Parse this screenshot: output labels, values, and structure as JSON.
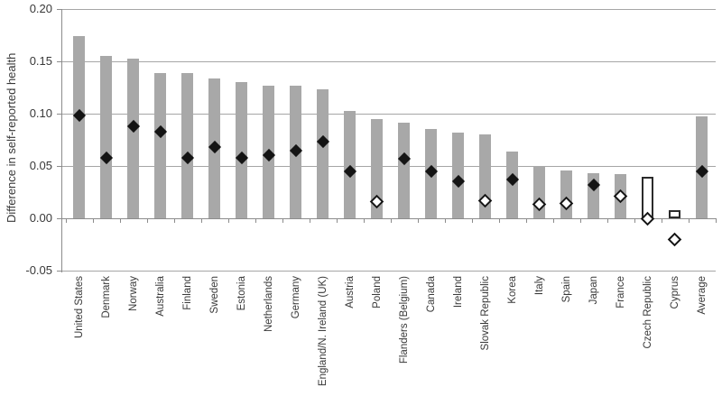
{
  "chart_data": {
    "type": "bar",
    "title": "",
    "xlabel": "",
    "ylabel": "Difference in self-reported health",
    "ylim": [
      -0.05,
      0.2
    ],
    "yticks": [
      0.2,
      0.15,
      0.1,
      0.05,
      0.0,
      -0.05
    ],
    "ytick_labels": [
      "0.20",
      "0.15",
      "0.10",
      "0.05",
      "0.00",
      "-0.05"
    ],
    "grid": true,
    "legend": "none",
    "marker_styles_meaning": {
      "filled": "black-filled diamond",
      "open": "white open diamond"
    },
    "bar_styles_meaning": {
      "solid": "gray filled bar",
      "outlined": "white bar with black outline"
    },
    "points": [
      {
        "label": "United States",
        "bar": 0.174,
        "bar_style": "solid",
        "marker": 0.098,
        "marker_style": "filled"
      },
      {
        "label": "Denmark",
        "bar": 0.155,
        "bar_style": "solid",
        "marker": 0.058,
        "marker_style": "filled"
      },
      {
        "label": "Norway",
        "bar": 0.153,
        "bar_style": "solid",
        "marker": 0.088,
        "marker_style": "filled"
      },
      {
        "label": "Australia",
        "bar": 0.139,
        "bar_style": "solid",
        "marker": 0.083,
        "marker_style": "filled"
      },
      {
        "label": "Finland",
        "bar": 0.139,
        "bar_style": "solid",
        "marker": 0.058,
        "marker_style": "filled"
      },
      {
        "label": "Sweden",
        "bar": 0.134,
        "bar_style": "solid",
        "marker": 0.068,
        "marker_style": "filled"
      },
      {
        "label": "Estonia",
        "bar": 0.13,
        "bar_style": "solid",
        "marker": 0.058,
        "marker_style": "filled"
      },
      {
        "label": "Netherlands",
        "bar": 0.127,
        "bar_style": "solid",
        "marker": 0.06,
        "marker_style": "filled"
      },
      {
        "label": "Germany",
        "bar": 0.127,
        "bar_style": "solid",
        "marker": 0.065,
        "marker_style": "filled"
      },
      {
        "label": "England/N. Ireland (UK)",
        "bar": 0.123,
        "bar_style": "solid",
        "marker": 0.073,
        "marker_style": "filled"
      },
      {
        "label": "Austria",
        "bar": 0.103,
        "bar_style": "solid",
        "marker": 0.045,
        "marker_style": "filled"
      },
      {
        "label": "Poland",
        "bar": 0.095,
        "bar_style": "solid",
        "marker": 0.016,
        "marker_style": "open"
      },
      {
        "label": "Flanders (Belgium)",
        "bar": 0.091,
        "bar_style": "solid",
        "marker": 0.057,
        "marker_style": "filled"
      },
      {
        "label": "Canada",
        "bar": 0.085,
        "bar_style": "solid",
        "marker": 0.045,
        "marker_style": "filled"
      },
      {
        "label": "Ireland",
        "bar": 0.082,
        "bar_style": "solid",
        "marker": 0.035,
        "marker_style": "filled"
      },
      {
        "label": "Slovak Republic",
        "bar": 0.08,
        "bar_style": "solid",
        "marker": 0.017,
        "marker_style": "open"
      },
      {
        "label": "Korea",
        "bar": 0.064,
        "bar_style": "solid",
        "marker": 0.037,
        "marker_style": "filled"
      },
      {
        "label": "Italy",
        "bar": 0.05,
        "bar_style": "solid",
        "marker": 0.013,
        "marker_style": "open"
      },
      {
        "label": "Spain",
        "bar": 0.046,
        "bar_style": "solid",
        "marker": 0.014,
        "marker_style": "open"
      },
      {
        "label": "Japan",
        "bar": 0.043,
        "bar_style": "solid",
        "marker": 0.032,
        "marker_style": "filled"
      },
      {
        "label": "France",
        "bar": 0.042,
        "bar_style": "solid",
        "marker": 0.021,
        "marker_style": "open"
      },
      {
        "label": "Czech Republic",
        "bar": 0.04,
        "bar_style": "outlined",
        "marker": 0.0,
        "marker_style": "open"
      },
      {
        "label": "Cyprus",
        "bar": 0.008,
        "bar_style": "outlined",
        "marker": -0.02,
        "marker_style": "open"
      },
      {
        "label": "Average",
        "bar": 0.097,
        "bar_style": "solid",
        "marker": 0.045,
        "marker_style": "filled"
      }
    ],
    "colors": {
      "bar_fill": "#a8a8a8",
      "bar_outline": "#2b2b2b",
      "marker_filled": "#141414",
      "marker_open_fill": "#ffffff",
      "gridline": "#a6a6a6",
      "axis": "#8c8c8c",
      "text": "#383838"
    }
  }
}
